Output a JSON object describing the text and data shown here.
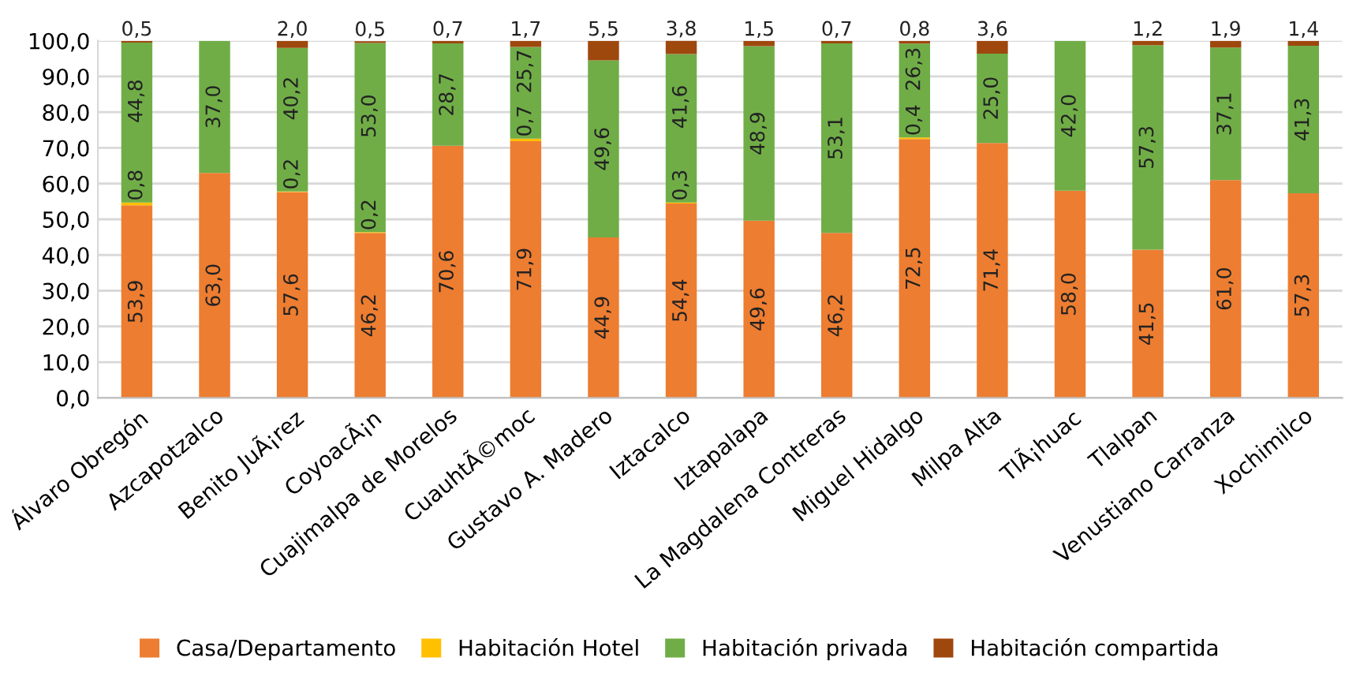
{
  "chart_data": {
    "type": "bar",
    "stacked": true,
    "categories": [
      "Álvaro Obregón",
      "Azcapotzalco",
      "Benito JuÃ¡rez",
      "CoyoacÃ¡n",
      "Cuajimalpa de Morelos",
      "CuauhtÃ©moc",
      "Gustavo A. Madero",
      "Iztacalco",
      "Iztapalapa",
      "La Magdalena Contreras",
      "Miguel Hidalgo",
      "Milpa Alta",
      "TlÃ¡huac",
      "Tlalpan",
      "Venustiano Carranza",
      "Xochimilco"
    ],
    "series": [
      {
        "name": "Casa/Departamento",
        "color": "#ed7d31",
        "values": [
          53.9,
          63.0,
          57.6,
          46.2,
          70.6,
          71.9,
          44.9,
          54.4,
          49.6,
          46.2,
          72.5,
          71.4,
          58.0,
          41.5,
          61.0,
          57.3
        ],
        "value_labels": [
          "53,9",
          "63,0",
          "57,6",
          "46,2",
          "70,6",
          "71,9",
          "44,9",
          "54,4",
          "49,6",
          "46,2",
          "72,5",
          "71,4",
          "58,0",
          "41,5",
          "61,0",
          "57,3"
        ]
      },
      {
        "name": "Habitación Hotel",
        "color": "#ffc000",
        "values": [
          0.8,
          null,
          0.2,
          0.2,
          null,
          0.7,
          null,
          0.3,
          null,
          null,
          0.4,
          null,
          null,
          null,
          null,
          null
        ],
        "value_labels": [
          "0,8",
          null,
          "0,2",
          "0,2",
          null,
          "0,7",
          null,
          "0,3",
          null,
          null,
          "0,4",
          null,
          null,
          null,
          null,
          null
        ]
      },
      {
        "name": "Habitación privada",
        "color": "#70ad47",
        "values": [
          44.8,
          37.0,
          40.2,
          53.0,
          28.7,
          25.7,
          49.6,
          41.6,
          48.9,
          53.1,
          26.3,
          25.0,
          42.0,
          57.3,
          37.1,
          41.3
        ],
        "value_labels": [
          "44,8",
          "37,0",
          "40,2",
          "53,0",
          "28,7",
          "25,7",
          "49,6",
          "41,6",
          "48,9",
          "53,1",
          "26,3",
          "25,0",
          "42,0",
          "57,3",
          "37,1",
          "41,3"
        ]
      },
      {
        "name": "Habitación compartida",
        "color": "#9e480e",
        "values": [
          0.5,
          null,
          2.0,
          0.5,
          0.7,
          1.7,
          5.5,
          3.8,
          1.5,
          0.7,
          0.8,
          3.6,
          null,
          1.2,
          1.9,
          1.4
        ],
        "value_labels": [
          "0,5",
          null,
          "2,0",
          "0,5",
          "0,7",
          "1,7",
          "5,5",
          "3,8",
          "1,5",
          "0,7",
          "0,8",
          "3,6",
          null,
          "1,2",
          "1,9",
          "1,4"
        ]
      }
    ],
    "ylim": [
      0,
      100
    ],
    "yticks": [
      {
        "value": 0,
        "label": "0,0"
      },
      {
        "value": 10,
        "label": "10,0"
      },
      {
        "value": 20,
        "label": "20,0"
      },
      {
        "value": 30,
        "label": "30,0"
      },
      {
        "value": 40,
        "label": "40,0"
      },
      {
        "value": 50,
        "label": "50,0"
      },
      {
        "value": 60,
        "label": "60,0"
      },
      {
        "value": 70,
        "label": "70,0"
      },
      {
        "value": 80,
        "label": "80,0"
      },
      {
        "value": 90,
        "label": "90,0"
      },
      {
        "value": 100,
        "label": "100,0"
      }
    ],
    "grid": "y",
    "legend": "bottom"
  }
}
